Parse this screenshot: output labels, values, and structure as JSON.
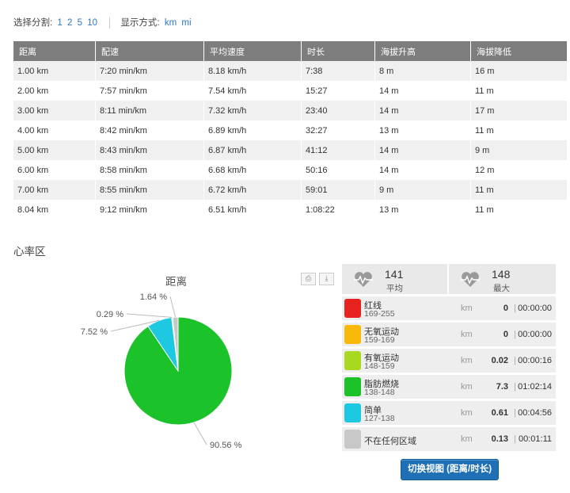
{
  "toolbar": {
    "split_label": "选择分割:",
    "split_options": [
      "1",
      "2",
      "5",
      "10"
    ],
    "display_label": "显示方式:",
    "unit_options": [
      "km",
      "mi"
    ]
  },
  "table": {
    "headers": [
      "距离",
      "配速",
      "平均速度",
      "时长",
      "海拔升高",
      "海拔降低"
    ],
    "rows": [
      [
        "1.00 km",
        "7:20 min/km",
        "8.18 km/h",
        "7:38",
        "8 m",
        "16 m"
      ],
      [
        "2.00 km",
        "7:57 min/km",
        "7.54 km/h",
        "15:27",
        "14 m",
        "11 m"
      ],
      [
        "3.00 km",
        "8:11 min/km",
        "7.32 km/h",
        "23:40",
        "14 m",
        "17 m"
      ],
      [
        "4.00 km",
        "8:42 min/km",
        "6.89 km/h",
        "32:27",
        "13 m",
        "11 m"
      ],
      [
        "5.00 km",
        "8:43 min/km",
        "6.87 km/h",
        "41:12",
        "14 m",
        "9 m"
      ],
      [
        "6.00 km",
        "8:58 min/km",
        "6.68 km/h",
        "50:16",
        "14 m",
        "12 m"
      ],
      [
        "7.00 km",
        "8:55 min/km",
        "6.72 km/h",
        "59:01",
        "9 m",
        "11 m"
      ],
      [
        "8.04 km",
        "9:12 min/km",
        "6.51 km/h",
        "1:08:22",
        "13 m",
        "11 m"
      ]
    ]
  },
  "hr_zone": {
    "section_title": "心率区",
    "avg_value": "141",
    "avg_label": "平均",
    "max_value": "148",
    "max_label": "最大"
  },
  "chart_data": {
    "type": "pie",
    "title": "距离",
    "slices": [
      {
        "label": "90.56 %",
        "value": 90.56,
        "color": "#1cc22a"
      },
      {
        "label": "7.52 %",
        "value": 7.52,
        "color": "#1dc8e0"
      },
      {
        "label": "0.29 %",
        "value": 0.29,
        "color": "#a8d820"
      },
      {
        "label": "1.64 %",
        "value": 1.64,
        "color": "#c8c8c8"
      }
    ]
  },
  "zones": [
    {
      "name": "红线",
      "range": "169-255",
      "unit": "km",
      "dist": "0",
      "sep": "|",
      "time": "00:00:00",
      "color": "#e8231f"
    },
    {
      "name": "无氧运动",
      "range": "159-169",
      "unit": "km",
      "dist": "0",
      "sep": "|",
      "time": "00:00:00",
      "color": "#f9b90a"
    },
    {
      "name": "有氧运动",
      "range": "148-159",
      "unit": "km",
      "dist": "0.02",
      "sep": "|",
      "time": "00:00:16",
      "color": "#a8d820"
    },
    {
      "name": "脂肪燃烧",
      "range": "138-148",
      "unit": "km",
      "dist": "7.3",
      "sep": "|",
      "time": "01:02:14",
      "color": "#1cc22a"
    },
    {
      "name": "简单",
      "range": "127-138",
      "unit": "km",
      "dist": "0.61",
      "sep": "|",
      "time": "00:04:56",
      "color": "#1dc8e0"
    },
    {
      "name": "不在任何区域",
      "range": "",
      "unit": "km",
      "dist": "0.13",
      "sep": "|",
      "time": "00:01:11",
      "color": "#c8c8c8"
    }
  ],
  "switch_button": "切换视图 (距离/时长)",
  "tool_icons": [
    "print-icon",
    "download-icon"
  ]
}
